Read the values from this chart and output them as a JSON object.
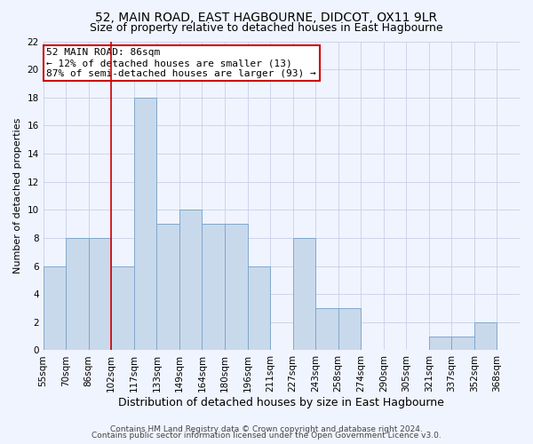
{
  "title": "52, MAIN ROAD, EAST HAGBOURNE, DIDCOT, OX11 9LR",
  "subtitle": "Size of property relative to detached houses in East Hagbourne",
  "xlabel": "Distribution of detached houses by size in East Hagbourne",
  "ylabel": "Number of detached properties",
  "footer_line1": "Contains HM Land Registry data © Crown copyright and database right 2024.",
  "footer_line2": "Contains public sector information licensed under the Open Government Licence v3.0.",
  "bin_labels": [
    "55sqm",
    "70sqm",
    "86sqm",
    "102sqm",
    "117sqm",
    "133sqm",
    "149sqm",
    "164sqm",
    "180sqm",
    "196sqm",
    "211sqm",
    "227sqm",
    "243sqm",
    "258sqm",
    "274sqm",
    "290sqm",
    "305sqm",
    "321sqm",
    "337sqm",
    "352sqm",
    "368sqm"
  ],
  "bar_heights": [
    6,
    8,
    8,
    6,
    18,
    9,
    10,
    9,
    9,
    6,
    0,
    8,
    3,
    3,
    0,
    0,
    0,
    1,
    1,
    2,
    0
  ],
  "bar_color": "#c9d9ec",
  "bar_edge_color": "#7fa8cc",
  "vline_x_pos": 3,
  "vline_color": "#cc0000",
  "annotation_box_text": "52 MAIN ROAD: 86sqm\n← 12% of detached houses are smaller (13)\n87% of semi-detached houses are larger (93) →",
  "annotation_box_color": "#cc0000",
  "ylim": [
    0,
    22
  ],
  "yticks": [
    0,
    2,
    4,
    6,
    8,
    10,
    12,
    14,
    16,
    18,
    20,
    22
  ],
  "grid_color": "#c8d0e8",
  "background_color": "#f0f4ff",
  "title_fontsize": 10,
  "subtitle_fontsize": 9,
  "xlabel_fontsize": 9,
  "ylabel_fontsize": 8,
  "tick_fontsize": 7.5,
  "annotation_fontsize": 8,
  "footer_fontsize": 6.5
}
